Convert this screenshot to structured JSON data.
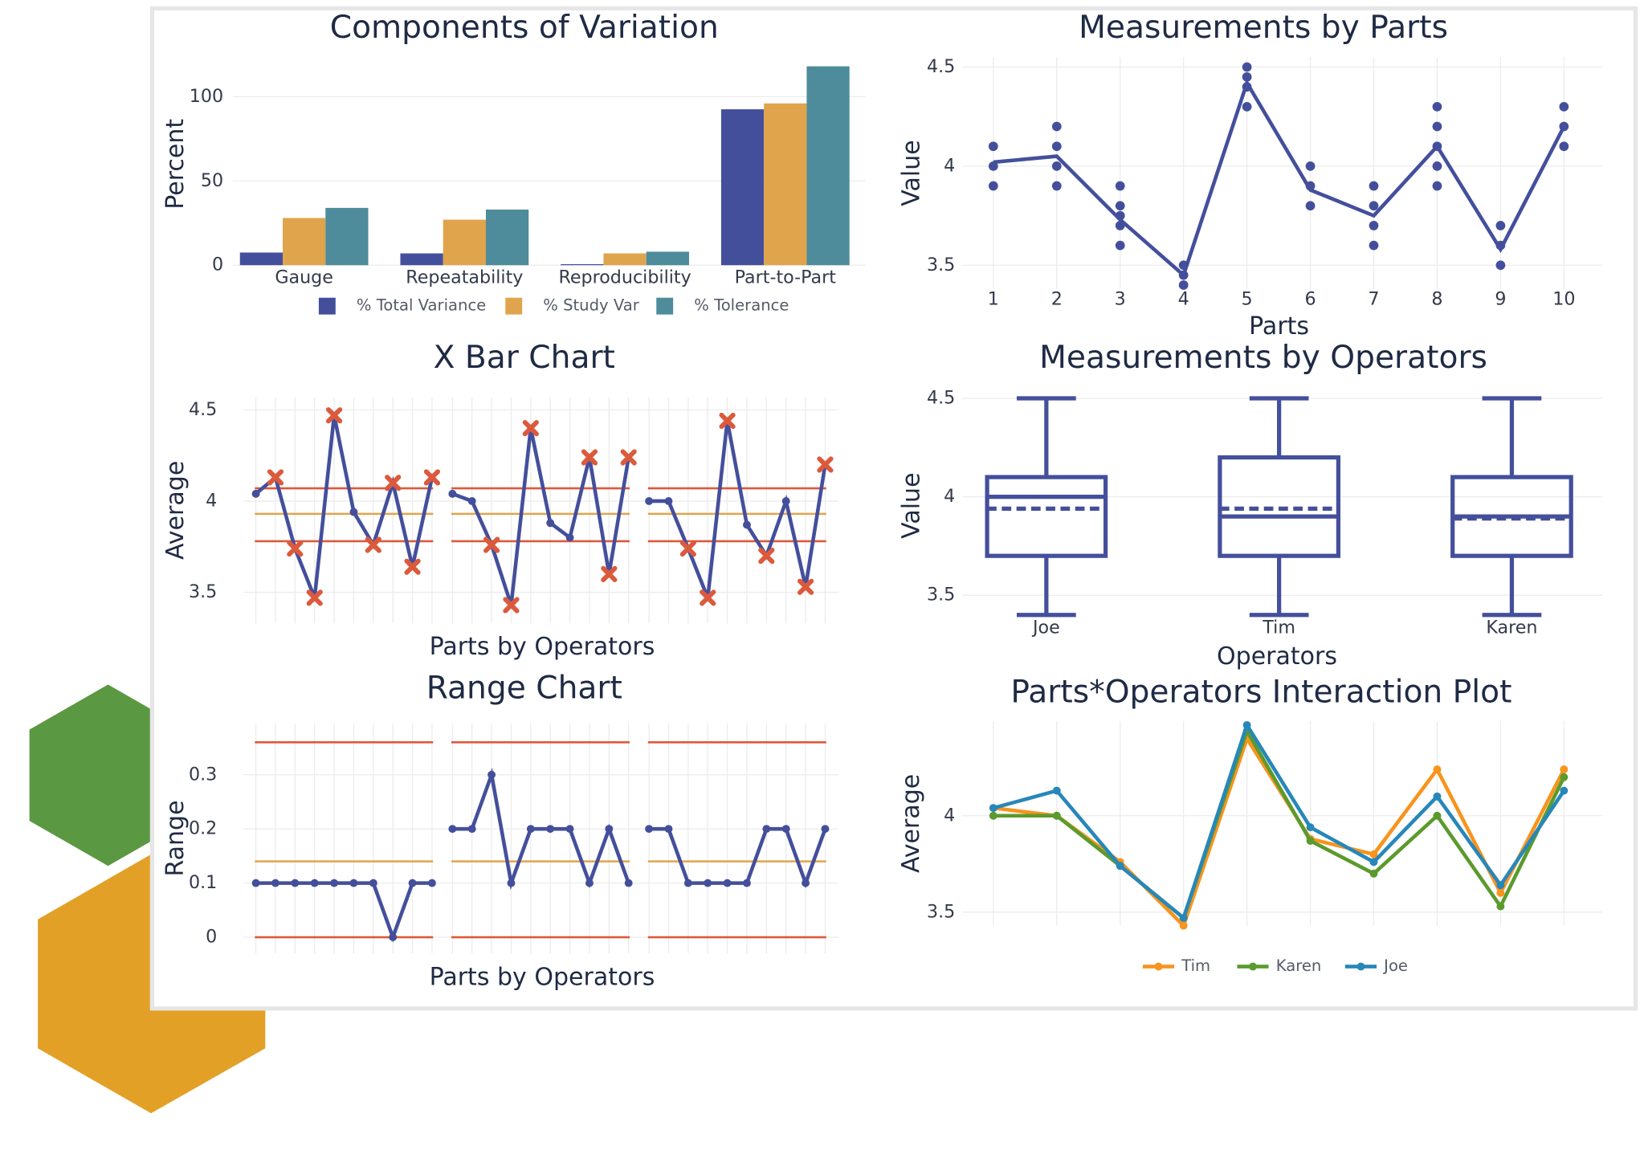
{
  "chart_data": [
    {
      "type": "bar",
      "title": "Components of Variation",
      "ylabel": "Percent",
      "categories": [
        "Gauge",
        "Repeatability",
        "Reproducibility",
        "Part-to-Part"
      ],
      "series": [
        {
          "name": "% Total Variance",
          "color": "#444f9c",
          "values": [
            7.5,
            7,
            0.6,
            92.5
          ]
        },
        {
          "name": "% Study Var",
          "color": "#e0a44c",
          "values": [
            28,
            27,
            7,
            96
          ]
        },
        {
          "name": "% Tolerance",
          "color": "#4e8b9b",
          "values": [
            34,
            33,
            8,
            118
          ]
        }
      ],
      "ylim": [
        -5,
        125
      ],
      "yticks": [
        0,
        50,
        100
      ],
      "grid": true,
      "legend": "bottom"
    },
    {
      "type": "scatter",
      "title": "Measurements by Parts",
      "xlabel": "Parts",
      "ylabel": "Value",
      "series": [
        {
          "mode": "markers",
          "color": "#444f9c",
          "x": [
            1,
            1,
            1,
            2,
            2,
            2,
            2,
            3,
            3,
            3,
            3,
            3,
            4,
            4,
            4,
            5,
            5,
            5,
            5,
            6,
            6,
            6,
            7,
            7,
            7,
            7,
            8,
            8,
            8,
            8,
            8,
            9,
            9,
            9,
            10,
            10,
            10
          ],
          "values": [
            4.1,
            4.0,
            3.9,
            4.2,
            4.1,
            4.0,
            3.9,
            3.9,
            3.8,
            3.75,
            3.7,
            3.6,
            3.5,
            3.45,
            3.4,
            4.5,
            4.45,
            4.4,
            4.3,
            4.0,
            3.9,
            3.8,
            3.9,
            3.8,
            3.7,
            3.6,
            4.3,
            4.2,
            4.1,
            4.0,
            3.9,
            3.7,
            3.6,
            3.5,
            4.3,
            4.2,
            4.1
          ]
        },
        {
          "mode": "lines",
          "color": "#444f9c",
          "x": [
            1,
            2,
            3,
            4,
            5,
            6,
            7,
            8,
            9,
            10
          ],
          "values": [
            4.02,
            4.05,
            3.73,
            3.45,
            4.42,
            3.88,
            3.75,
            4.1,
            3.58,
            4.2
          ]
        }
      ],
      "xlim": [
        0.1,
        10.6
      ],
      "xticks": [
        1,
        2,
        3,
        4,
        5,
        6,
        7,
        8,
        9,
        10
      ],
      "ylim": [
        3.38,
        4.55
      ],
      "yticks": [
        3.5,
        4,
        4.5
      ],
      "grid": true
    },
    {
      "type": "control",
      "title": "X Bar Chart",
      "xlabel": "Parts by Operators",
      "ylabel": "Average",
      "color": "#444f9c",
      "limit_color": "#dc5a3c",
      "center_color": "#e0a44c",
      "flag_color": "#dc5a3c",
      "series": [
        {
          "values": [
            4.04,
            4.13,
            3.74,
            3.47,
            4.47,
            3.94,
            3.76,
            4.1,
            3.64,
            4.13
          ]
        },
        {
          "values": [
            4.04,
            4.0,
            3.76,
            3.43,
            4.4,
            3.88,
            3.8,
            4.24,
            3.6,
            4.24
          ]
        },
        {
          "values": [
            4.0,
            4.0,
            3.74,
            3.47,
            4.44,
            3.87,
            3.7,
            4.0,
            3.53,
            4.2
          ]
        }
      ],
      "limits": {
        "ucl": 4.07,
        "center": 3.93,
        "lcl": 3.78
      },
      "ylim": [
        3.33,
        4.57
      ],
      "yticks": [
        3.5,
        4,
        4.5
      ],
      "grid": true
    },
    {
      "type": "box",
      "title": "Measurements by Operators",
      "xlabel": "Operators",
      "ylabel": "Value",
      "color": "#444f9c",
      "categories": [
        "Joe",
        "Tim",
        "Karen"
      ],
      "boxes": [
        {
          "min": 3.4,
          "q1": 3.7,
          "median": 4.0,
          "q3": 4.1,
          "max": 4.5,
          "mean": 3.94
        },
        {
          "min": 3.4,
          "q1": 3.7,
          "median": 3.9,
          "q3": 4.2,
          "max": 4.5,
          "mean": 3.94
        },
        {
          "min": 3.4,
          "q1": 3.7,
          "median": 3.9,
          "q3": 4.1,
          "max": 4.5,
          "mean": 3.89
        }
      ],
      "ylim": [
        3.35,
        4.56
      ],
      "yticks": [
        3.5,
        4,
        4.5
      ],
      "grid": true
    },
    {
      "type": "control",
      "title": "Range Chart",
      "xlabel": "Parts by Operators",
      "ylabel": "Range",
      "color": "#444f9c",
      "limit_color": "#dc5a3c",
      "center_color": "#e0a44c",
      "flag_color": "#dc5a3c",
      "series": [
        {
          "values": [
            0.1,
            0.1,
            0.1,
            0.1,
            0.1,
            0.1,
            0.1,
            0,
            0.1,
            0.1
          ]
        },
        {
          "values": [
            0.2,
            0.2,
            0.3,
            0.1,
            0.2,
            0.2,
            0.2,
            0.1,
            0.2,
            0.1
          ]
        },
        {
          "values": [
            0.2,
            0.2,
            0.1,
            0.1,
            0.1,
            0.1,
            0.2,
            0.2,
            0.1,
            0.2
          ]
        }
      ],
      "limits": {
        "ucl": 0.36,
        "center": 0.14,
        "lcl": 0
      },
      "ylim": [
        -0.03,
        0.395
      ],
      "yticks": [
        0,
        0.1,
        0.2,
        0.3
      ],
      "grid": true
    },
    {
      "type": "line",
      "title": "Parts*Operators Interaction Plot",
      "ylabel": "Average",
      "x": [
        1,
        2,
        3,
        4,
        5,
        6,
        7,
        8,
        9,
        10
      ],
      "series": [
        {
          "name": "Tim",
          "color": "#f7941d",
          "values": [
            4.04,
            4.0,
            3.76,
            3.43,
            4.4,
            3.88,
            3.8,
            4.24,
            3.6,
            4.24
          ]
        },
        {
          "name": "Karen",
          "color": "#5b9a2e",
          "values": [
            4.0,
            4.0,
            3.74,
            3.47,
            4.44,
            3.87,
            3.7,
            4.0,
            3.53,
            4.2
          ]
        },
        {
          "name": "Joe",
          "color": "#2787b9",
          "values": [
            4.04,
            4.13,
            3.74,
            3.47,
            4.47,
            3.94,
            3.76,
            4.1,
            3.64,
            4.13
          ]
        }
      ],
      "xlim": [
        0.1,
        10.6
      ],
      "ylim": [
        3.43,
        4.49
      ],
      "yticks": [
        3.5,
        4
      ],
      "grid": true,
      "legend": "bottom"
    }
  ]
}
